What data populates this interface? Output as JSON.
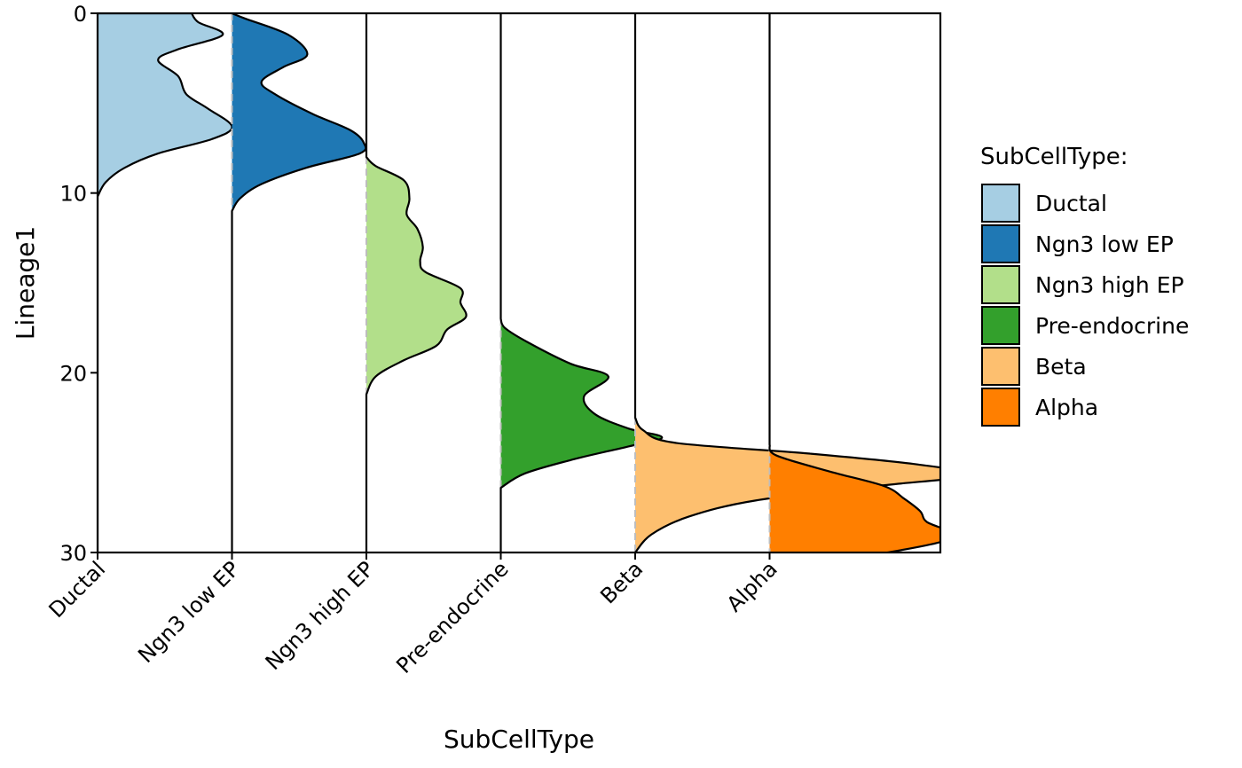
{
  "chart_data": {
    "type": "ridgeline",
    "orientation": "vertical-ridges",
    "xlabel": "SubCellType",
    "ylabel": "Lineage1",
    "y_axis_reversed": true,
    "ylim": [
      0,
      30
    ],
    "yticks": [
      "0",
      "10",
      "20",
      "30"
    ],
    "categories": [
      "Ductal",
      "Ngn3 low EP",
      "Ngn3 high EP",
      "Pre-endocrine",
      "Beta",
      "Alpha"
    ],
    "legend": {
      "title": "SubCellType:",
      "position": "right",
      "items": [
        {
          "label": "Ductal",
          "color": "#A6CEE3"
        },
        {
          "label": "Ngn3 low EP",
          "color": "#1F78B4"
        },
        {
          "label": "Ngn3 high EP",
          "color": "#B2DF8A"
        },
        {
          "label": "Pre-endocrine",
          "color": "#33A02C"
        },
        {
          "label": "Beta",
          "color": "#FDBF6F"
        },
        {
          "label": "Alpha",
          "color": "#FF7F00"
        }
      ]
    },
    "series": [
      {
        "name": "Ductal",
        "color": "#A6CEE3",
        "points": [
          [
            0,
            0.7
          ],
          [
            0.5,
            0.75
          ],
          [
            1.2,
            0.93
          ],
          [
            2,
            0.6
          ],
          [
            2.6,
            0.45
          ],
          [
            3.5,
            0.6
          ],
          [
            4.5,
            0.66
          ],
          [
            5.3,
            0.82
          ],
          [
            6.3,
            1.0
          ],
          [
            7,
            0.85
          ],
          [
            7.8,
            0.45
          ],
          [
            8.6,
            0.2
          ],
          [
            9.4,
            0.06
          ],
          [
            10.2,
            0
          ]
        ]
      },
      {
        "name": "Ngn3 low EP",
        "color": "#1F78B4",
        "points": [
          [
            0,
            0
          ],
          [
            0.3,
            0.1
          ],
          [
            1.2,
            0.42
          ],
          [
            2.3,
            0.56
          ],
          [
            3,
            0.38
          ],
          [
            3.8,
            0.22
          ],
          [
            4.5,
            0.32
          ],
          [
            5.6,
            0.6
          ],
          [
            6.5,
            0.88
          ],
          [
            7.2,
            0.98
          ],
          [
            7.8,
            0.95
          ],
          [
            8.6,
            0.55
          ],
          [
            9.5,
            0.22
          ],
          [
            10.3,
            0.06
          ],
          [
            11,
            0
          ]
        ]
      },
      {
        "name": "Ngn3 high EP",
        "color": "#B2DF8A",
        "points": [
          [
            8,
            0
          ],
          [
            8.5,
            0.07
          ],
          [
            9.3,
            0.28
          ],
          [
            10.3,
            0.32
          ],
          [
            11.2,
            0.3
          ],
          [
            12,
            0.38
          ],
          [
            13,
            0.42
          ],
          [
            13.8,
            0.4
          ],
          [
            14.4,
            0.44
          ],
          [
            15.3,
            0.7
          ],
          [
            16.1,
            0.7
          ],
          [
            16.9,
            0.74
          ],
          [
            17.6,
            0.6
          ],
          [
            18.5,
            0.52
          ],
          [
            19.3,
            0.28
          ],
          [
            20.2,
            0.07
          ],
          [
            21.2,
            0
          ]
        ]
      },
      {
        "name": "Pre-endocrine",
        "color": "#33A02C",
        "points": [
          [
            17,
            0
          ],
          [
            17.5,
            0.03
          ],
          [
            18.3,
            0.2
          ],
          [
            19.5,
            0.52
          ],
          [
            20.2,
            0.8
          ],
          [
            21.3,
            0.62
          ],
          [
            22.3,
            0.7
          ],
          [
            23.1,
            0.95
          ],
          [
            23.6,
            1.2
          ],
          [
            24.1,
            0.95
          ],
          [
            24.8,
            0.55
          ],
          [
            25.6,
            0.18
          ],
          [
            26.4,
            0
          ]
        ]
      },
      {
        "name": "Beta",
        "color": "#FDBF6F",
        "points": [
          [
            22.5,
            0
          ],
          [
            23.2,
            0.06
          ],
          [
            23.9,
            0.3
          ],
          [
            24.5,
            1.3
          ],
          [
            25.1,
            2.1
          ],
          [
            25.7,
            2.5
          ],
          [
            26.3,
            1.8
          ],
          [
            27.1,
            0.9
          ],
          [
            28,
            0.4
          ],
          [
            29,
            0.12
          ],
          [
            30,
            0
          ]
        ]
      },
      {
        "name": "Alpha",
        "color": "#FF7F00",
        "points": [
          [
            24,
            0
          ],
          [
            24.6,
            0.05
          ],
          [
            25.5,
            0.45
          ],
          [
            26.3,
            0.85
          ],
          [
            27,
            1.0
          ],
          [
            27.7,
            1.12
          ],
          [
            28.3,
            1.17
          ],
          [
            28.9,
            1.35
          ],
          [
            29.4,
            1.28
          ],
          [
            30,
            0.88
          ],
          [
            30.3,
            0.6
          ]
        ]
      }
    ]
  }
}
